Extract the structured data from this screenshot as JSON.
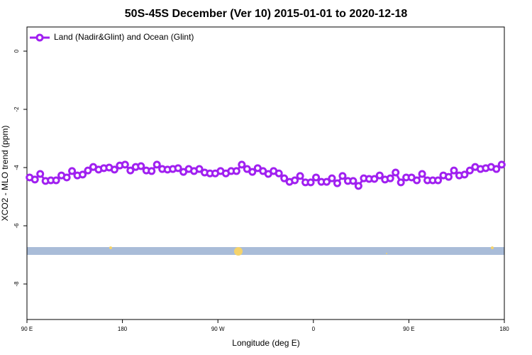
{
  "chart_data": {
    "type": "line",
    "title": "50S-45S December (Ver 10)   2015-01-01 to 2020-12-18",
    "x_label": "Longitude (deg E)",
    "y_label": "XCO2 - MLO trend (ppm)",
    "legend": "top-left",
    "xlim": [
      90,
      540
    ],
    "ylim": [
      -9.22,
      0.83
    ],
    "xticks": [
      {
        "value": 90,
        "label": "90 E"
      },
      {
        "value": 180,
        "label": "180"
      },
      {
        "value": 270,
        "label": "90 W"
      },
      {
        "value": 360,
        "label": "0"
      },
      {
        "value": 450,
        "label": "90 E"
      },
      {
        "value": 540,
        "label": "180"
      }
    ],
    "yticks": [
      0,
      -2,
      -4,
      -6,
      -8
    ],
    "x": [
      92.5,
      97.5,
      102.5,
      107.5,
      112.5,
      117.5,
      122.5,
      127.5,
      132.5,
      137.5,
      142.5,
      147.5,
      152.5,
      157.5,
      162.5,
      167.5,
      172.5,
      177.5,
      182.5,
      187.5,
      192.5,
      197.5,
      202.5,
      207.5,
      212.5,
      217.5,
      222.5,
      227.5,
      232.5,
      237.5,
      242.5,
      247.5,
      252.5,
      257.5,
      262.5,
      267.5,
      272.5,
      277.5,
      282.5,
      287.5,
      292.5,
      297.5,
      302.5,
      307.5,
      312.5,
      317.5,
      322.5,
      327.5,
      332.5,
      337.5,
      342.5,
      347.5,
      352.5,
      357.5,
      362.5,
      367.5,
      372.5,
      377.5,
      382.5,
      387.5,
      392.5,
      397.5,
      402.5,
      407.5,
      412.5,
      417.5,
      422.5,
      427.5,
      432.5,
      437.5,
      442.5,
      447.5,
      452.5,
      457.5,
      462.5,
      467.5,
      472.5,
      477.5,
      482.5,
      487.5,
      492.5,
      497.5,
      502.5,
      507.5,
      512.5,
      517.5,
      522.5,
      527.5,
      532.5,
      537.5
    ],
    "series": [
      {
        "name": "Land (Nadir&Glint) and Ocean (Glint)",
        "color": "#a020f0",
        "values": [
          -4.34,
          -4.41,
          -4.22,
          -4.46,
          -4.44,
          -4.44,
          -4.27,
          -4.34,
          -4.12,
          -4.27,
          -4.24,
          -4.1,
          -3.98,
          -4.07,
          -4.02,
          -4.0,
          -4.07,
          -3.93,
          -3.9,
          -4.1,
          -3.98,
          -3.95,
          -4.1,
          -4.12,
          -3.9,
          -4.05,
          -4.07,
          -4.05,
          -4.02,
          -4.15,
          -4.05,
          -4.12,
          -4.05,
          -4.17,
          -4.2,
          -4.2,
          -4.12,
          -4.2,
          -4.12,
          -4.12,
          -3.9,
          -4.05,
          -4.15,
          -4.02,
          -4.12,
          -4.22,
          -4.12,
          -4.2,
          -4.37,
          -4.49,
          -4.44,
          -4.29,
          -4.51,
          -4.51,
          -4.34,
          -4.49,
          -4.49,
          -4.37,
          -4.54,
          -4.29,
          -4.46,
          -4.46,
          -4.63,
          -4.37,
          -4.39,
          -4.39,
          -4.27,
          -4.41,
          -4.37,
          -4.17,
          -4.51,
          -4.34,
          -4.34,
          -4.44,
          -4.22,
          -4.44,
          -4.44,
          -4.44,
          -4.27,
          -4.32,
          -4.1,
          -4.27,
          -4.24,
          -4.1,
          -3.98,
          -4.05,
          -4.02,
          -3.98,
          -4.05,
          -3.9
        ]
      }
    ]
  }
}
